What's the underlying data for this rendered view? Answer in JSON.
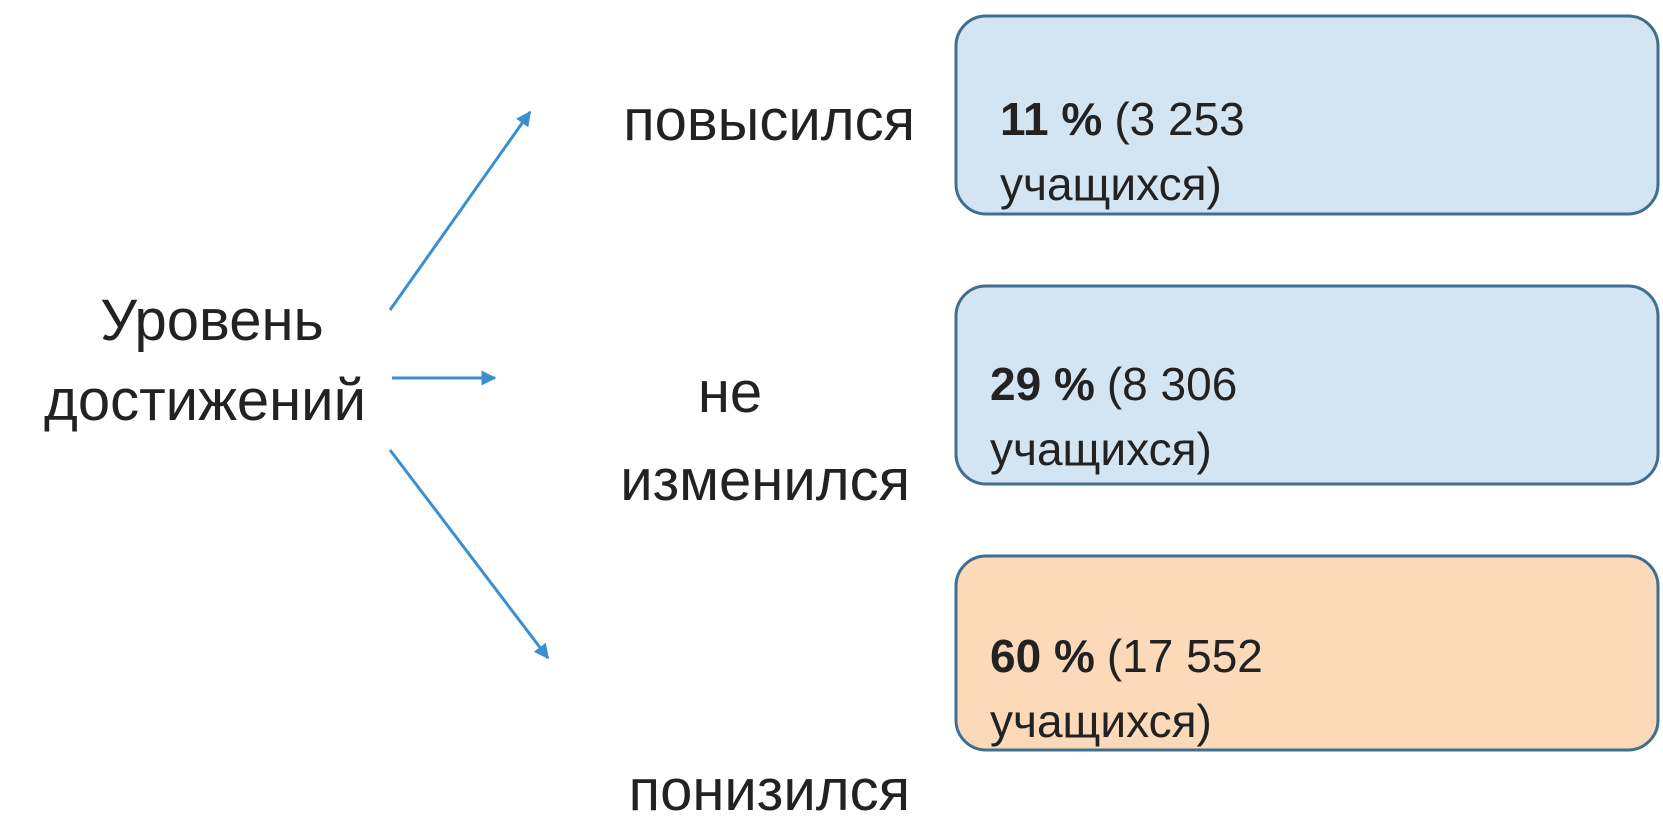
{
  "source": {
    "lines": [
      "Уровень",
      "достижений"
    ]
  },
  "branches": [
    {
      "label_lines": [
        "повысился"
      ],
      "box": {
        "percent": "11 %",
        "count": "(3 253",
        "unit": "учащихся)"
      }
    },
    {
      "label_lines": [
        "не",
        "изменился"
      ],
      "box": {
        "percent": "29 %",
        "count": "(8 306",
        "unit": "учащихся)"
      }
    },
    {
      "label_lines": [
        "понизился"
      ],
      "box": {
        "percent": "60 %",
        "count": "(17 552",
        "unit": "учащихся)"
      }
    }
  ]
}
